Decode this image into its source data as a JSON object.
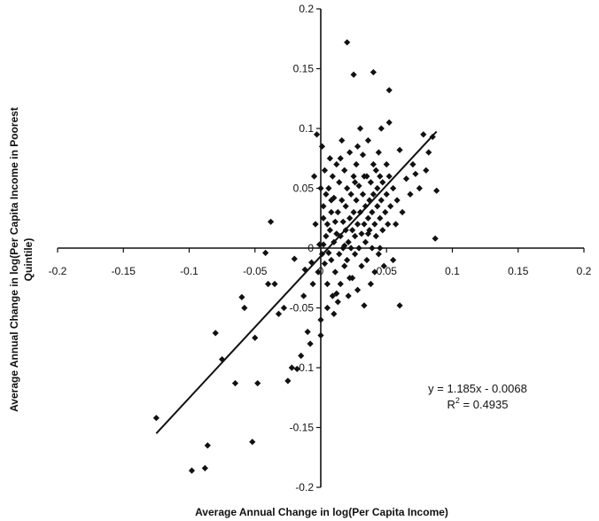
{
  "chart_data": {
    "type": "scatter",
    "title": "",
    "xlabel": "Average Annual Change in log(Per Capita Income)",
    "ylabel_line1": "Average Annual Change in log(Per Capita Income in Poorest",
    "ylabel_line2": "Quintile)",
    "xlim": [
      -0.2,
      0.2
    ],
    "ylim": [
      -0.2,
      0.2
    ],
    "x_ticks": [
      -0.2,
      -0.15,
      -0.1,
      -0.05,
      0,
      0.05,
      0.1,
      0.15,
      0.2
    ],
    "x_tick_labels": [
      "-0.2",
      "-0.15",
      "-0.1",
      "-0.05",
      "0",
      "0.05",
      "0.1",
      "0.15",
      "0.2"
    ],
    "y_ticks": [
      -0.2,
      -0.15,
      -0.1,
      -0.05,
      0,
      0.05,
      0.1,
      0.15,
      0.2
    ],
    "y_tick_labels": [
      "-0.2",
      "-0.15",
      "-0.1",
      "-0.05",
      "0",
      "0.05",
      "0.1",
      "0.15",
      "0.2"
    ],
    "grid": false,
    "trendline": {
      "slope": 1.185,
      "intercept": -0.0068,
      "x_start": -0.125,
      "x_end": 0.088
    },
    "equation": "y = 1.185x - 0.0068",
    "r_squared_label": "R",
    "r_squared_exp": "2",
    "r_squared_value": " = 0.4935",
    "points": [
      [
        -0.125,
        -0.142
      ],
      [
        -0.098,
        -0.186
      ],
      [
        -0.088,
        -0.184
      ],
      [
        -0.086,
        -0.165
      ],
      [
        -0.08,
        -0.071
      ],
      [
        -0.075,
        -0.093
      ],
      [
        -0.065,
        -0.113
      ],
      [
        -0.06,
        -0.041
      ],
      [
        -0.058,
        -0.05
      ],
      [
        -0.052,
        -0.162
      ],
      [
        -0.05,
        -0.075
      ],
      [
        -0.048,
        -0.113
      ],
      [
        -0.042,
        -0.004
      ],
      [
        -0.04,
        -0.03
      ],
      [
        -0.038,
        0.022
      ],
      [
        -0.035,
        -0.03
      ],
      [
        -0.032,
        -0.055
      ],
      [
        -0.028,
        -0.05
      ],
      [
        -0.025,
        -0.111
      ],
      [
        -0.022,
        -0.1
      ],
      [
        -0.02,
        -0.009
      ],
      [
        -0.018,
        -0.101
      ],
      [
        -0.015,
        -0.09
      ],
      [
        -0.013,
        -0.04
      ],
      [
        -0.012,
        -0.018
      ],
      [
        -0.01,
        -0.07
      ],
      [
        -0.008,
        -0.08
      ],
      [
        -0.006,
        -0.03
      ],
      [
        -0.005,
        0.06
      ],
      [
        -0.004,
        0.02
      ],
      [
        -0.003,
        0.095
      ],
      [
        -0.002,
        -0.02
      ],
      [
        -0.001,
        0.003
      ],
      [
        0.0,
        0.05
      ],
      [
        0.0,
        -0.06
      ],
      [
        0.001,
        -0.005
      ],
      [
        0.001,
        0.085
      ],
      [
        0.002,
        0.003
      ],
      [
        0.002,
        0.035
      ],
      [
        0.003,
        -0.013
      ],
      [
        0.003,
        0.065
      ],
      [
        0.004,
        0.01
      ],
      [
        0.004,
        0.045
      ],
      [
        0.005,
        -0.03
      ],
      [
        0.005,
        0.02
      ],
      [
        0.006,
        -0.004
      ],
      [
        0.006,
        0.05
      ],
      [
        0.007,
        0.015
      ],
      [
        0.007,
        0.075
      ],
      [
        0.008,
        -0.01
      ],
      [
        0.008,
        0.03
      ],
      [
        0.009,
        -0.04
      ],
      [
        0.009,
        0.06
      ],
      [
        0.01,
        0.005
      ],
      [
        0.01,
        0.042
      ],
      [
        0.011,
        0.022
      ],
      [
        0.011,
        -0.02
      ],
      [
        0.012,
        0.012
      ],
      [
        0.012,
        0.07
      ],
      [
        0.013,
        -0.045
      ],
      [
        0.013,
        0.03
      ],
      [
        0.014,
        -0.005
      ],
      [
        0.014,
        0.055
      ],
      [
        0.015,
        0.01
      ],
      [
        0.015,
        -0.03
      ],
      [
        0.016,
        0.04
      ],
      [
        0.016,
        0.09
      ],
      [
        0.017,
        0.0
      ],
      [
        0.017,
        0.022
      ],
      [
        0.018,
        -0.015
      ],
      [
        0.018,
        0.065
      ],
      [
        0.019,
        0.015
      ],
      [
        0.019,
        0.035
      ],
      [
        0.02,
        -0.01
      ],
      [
        0.02,
        0.05
      ],
      [
        0.021,
        0.005
      ],
      [
        0.021,
        -0.04
      ],
      [
        0.022,
        0.025
      ],
      [
        0.022,
        0.08
      ],
      [
        0.023,
        0.0
      ],
      [
        0.023,
        0.045
      ],
      [
        0.024,
        -0.025
      ],
      [
        0.024,
        0.015
      ],
      [
        0.025,
        0.06
      ],
      [
        0.025,
        0.03
      ],
      [
        0.026,
        -0.005
      ],
      [
        0.026,
        0.01
      ],
      [
        0.027,
        0.07
      ],
      [
        0.027,
        0.04
      ],
      [
        0.028,
        -0.035
      ],
      [
        0.028,
        0.02
      ],
      [
        0.029,
        0.052
      ],
      [
        0.029,
        0.0
      ],
      [
        0.03,
        0.1
      ],
      [
        0.03,
        0.03
      ],
      [
        0.031,
        -0.015
      ],
      [
        0.031,
        0.012
      ],
      [
        0.032,
        0.045
      ],
      [
        0.032,
        0.078
      ],
      [
        0.033,
        0.02
      ],
      [
        0.033,
        -0.048
      ],
      [
        0.034,
        0.035
      ],
      [
        0.034,
        0.005
      ],
      [
        0.035,
        0.06
      ],
      [
        0.035,
        -0.01
      ],
      [
        0.036,
        0.025
      ],
      [
        0.036,
        0.09
      ],
      [
        0.037,
        0.04
      ],
      [
        0.037,
        0.015
      ],
      [
        0.038,
        -0.03
      ],
      [
        0.038,
        0.055
      ],
      [
        0.039,
        0.0
      ],
      [
        0.039,
        0.03
      ],
      [
        0.04,
        0.07
      ],
      [
        0.04,
        0.045
      ],
      [
        0.041,
        0.02
      ],
      [
        0.041,
        -0.02
      ],
      [
        0.042,
        0.065
      ],
      [
        0.042,
        0.01
      ],
      [
        0.043,
        0.05
      ],
      [
        0.043,
        0.035
      ],
      [
        0.044,
        0.08
      ],
      [
        0.044,
        -0.005
      ],
      [
        0.045,
        0.025
      ],
      [
        0.045,
        0.06
      ],
      [
        0.046,
        0.1
      ],
      [
        0.046,
        0.04
      ],
      [
        0.047,
        0.015
      ],
      [
        0.047,
        0.055
      ],
      [
        0.048,
        -0.015
      ],
      [
        0.049,
        0.03
      ],
      [
        0.05,
        0.07
      ],
      [
        0.05,
        0.045
      ],
      [
        0.051,
        0.02
      ],
      [
        0.052,
        0.105
      ],
      [
        0.052,
        0.06
      ],
      [
        0.053,
        0.035
      ],
      [
        0.055,
        0.05
      ],
      [
        0.055,
        -0.01
      ],
      [
        0.057,
        0.02
      ],
      [
        0.058,
        0.04
      ],
      [
        0.06,
        -0.048
      ],
      [
        0.062,
        0.03
      ],
      [
        0.065,
        0.058
      ],
      [
        0.068,
        0.045
      ],
      [
        0.07,
        0.07
      ],
      [
        0.072,
        0.062
      ],
      [
        0.075,
        0.05
      ],
      [
        0.078,
        0.095
      ],
      [
        0.08,
        0.065
      ],
      [
        0.082,
        0.08
      ],
      [
        0.085,
        0.093
      ],
      [
        0.087,
        0.008
      ],
      [
        0.088,
        0.048
      ],
      [
        0.02,
        0.172
      ],
      [
        0.025,
        0.145
      ],
      [
        0.04,
        0.147
      ],
      [
        0.052,
        0.132
      ],
      [
        0.0,
        -0.073
      ],
      [
        0.005,
        -0.05
      ],
      [
        0.012,
        -0.038
      ],
      [
        -0.007,
        -0.012
      ],
      [
        0.002,
        0.025
      ],
      [
        0.015,
        0.075
      ],
      [
        0.028,
        0.085
      ],
      [
        0.033,
        0.06
      ],
      [
        0.06,
        0.082
      ],
      [
        0.045,
        0.0
      ],
      [
        0.008,
        0.04
      ],
      [
        0.018,
        0.002
      ],
      [
        0.026,
        0.055
      ],
      [
        0.036,
        0.012
      ],
      [
        0.01,
        -0.055
      ],
      [
        0.022,
        -0.025
      ]
    ]
  }
}
